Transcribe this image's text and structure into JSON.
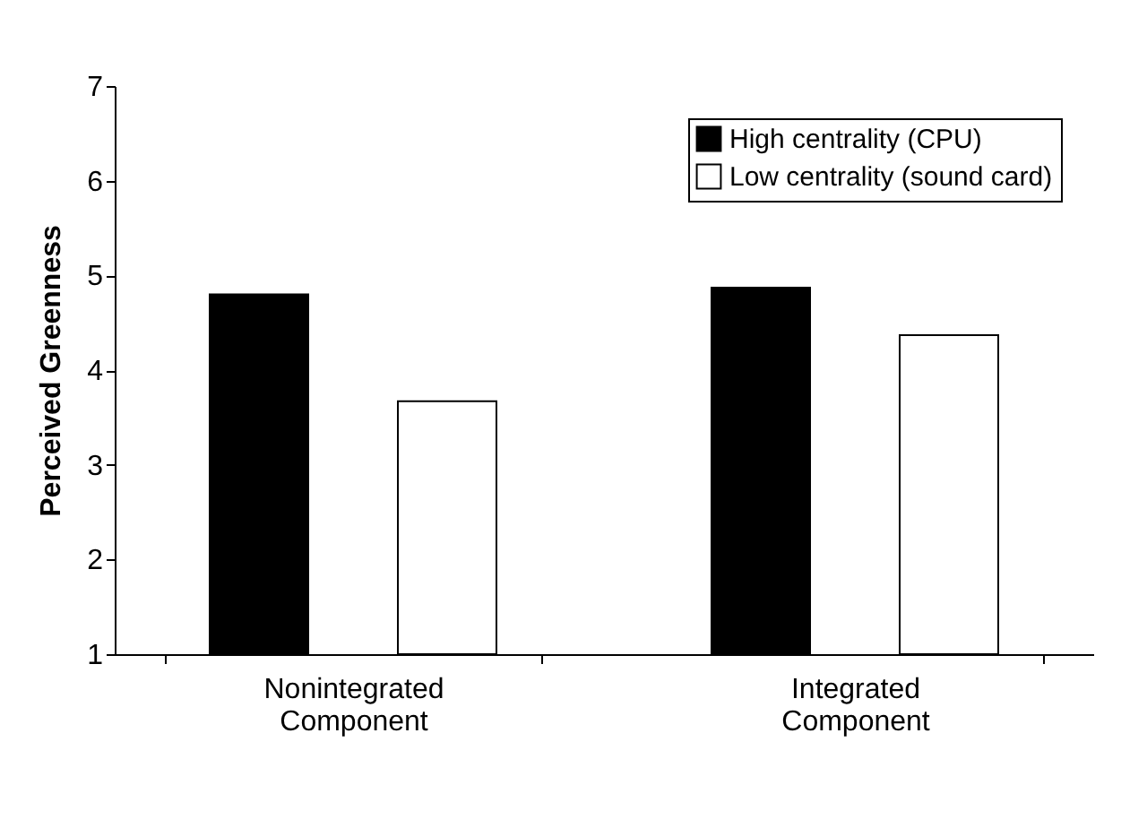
{
  "chart_data": {
    "type": "bar",
    "ylabel": "Perceived Greenness",
    "categories": [
      "Nonintegrated Component",
      "Integrated Component"
    ],
    "series": [
      {
        "name": "High centrality (CPU)",
        "color": "#000000",
        "values": [
          4.8,
          4.87
        ]
      },
      {
        "name": "Low centrality (sound card)",
        "color": "#ffffff",
        "values": [
          3.67,
          4.37
        ]
      }
    ],
    "ylim": [
      1,
      7
    ],
    "yticks": [
      1,
      2,
      3,
      4,
      5,
      6,
      7
    ],
    "grid": false,
    "legend": "top right"
  }
}
